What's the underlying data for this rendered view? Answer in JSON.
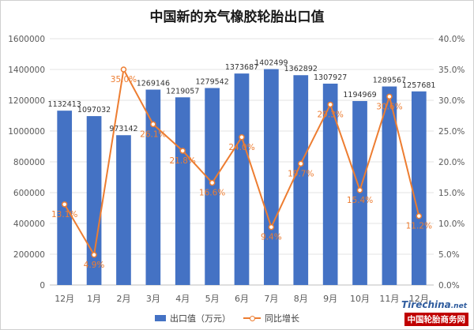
{
  "title": "中国新的充气橡胶轮胎出口值",
  "legend": {
    "bar_label": "出口值（万元）",
    "line_label": "同比增长"
  },
  "logo": {
    "top": "Tirechina",
    "top_suffix": ".net",
    "bottom": "中国轮胎商务网"
  },
  "colors": {
    "bar": "#4472C4",
    "line": "#ED7D31"
  },
  "chart_data": {
    "type": "bar",
    "categories": [
      "12月",
      "1月",
      "2月",
      "3月",
      "4月",
      "5月",
      "6月",
      "7月",
      "8月",
      "9月",
      "10月",
      "11月",
      "12月"
    ],
    "series": [
      {
        "name": "出口值（万元）",
        "type": "bar",
        "axis": "left",
        "values": [
          1132413,
          1097032,
          973142,
          1269146,
          1219057,
          1279542,
          1373687,
          1402499,
          1362892,
          1307927,
          1194969,
          1289567,
          1257681
        ],
        "labels": [
          "1132413",
          "1097032",
          "973142",
          "1269146",
          "1219057",
          "1279542",
          "1373687",
          "1402499",
          "1362892",
          "1307927",
          "1194969",
          "1289567",
          "1257681"
        ]
      },
      {
        "name": "同比增长",
        "type": "line",
        "axis": "right",
        "values": [
          13.1,
          4.9,
          35.0,
          26.1,
          21.8,
          16.6,
          24.0,
          9.4,
          19.7,
          29.3,
          15.4,
          30.6,
          11.2
        ],
        "labels": [
          "13.1%",
          "4.9%",
          "35.0%",
          "26.1%",
          "21.8%",
          "16.6%",
          "24.0%",
          "9.4%",
          "19.7%",
          "29.3%",
          "15.4%",
          "30.6%",
          "11.2%"
        ]
      }
    ],
    "y_left": {
      "range": [
        0,
        1600000
      ],
      "ticks": [
        "0",
        "200000",
        "400000",
        "600000",
        "800000",
        "1000000",
        "1200000",
        "1400000",
        "1600000"
      ]
    },
    "y_right": {
      "range": [
        0,
        40
      ],
      "ticks": [
        "0.0%",
        "5.0%",
        "10.0%",
        "15.0%",
        "20.0%",
        "25.0%",
        "30.0%",
        "35.0%",
        "40.0%"
      ]
    },
    "grid": true,
    "legend_position": "bottom"
  }
}
